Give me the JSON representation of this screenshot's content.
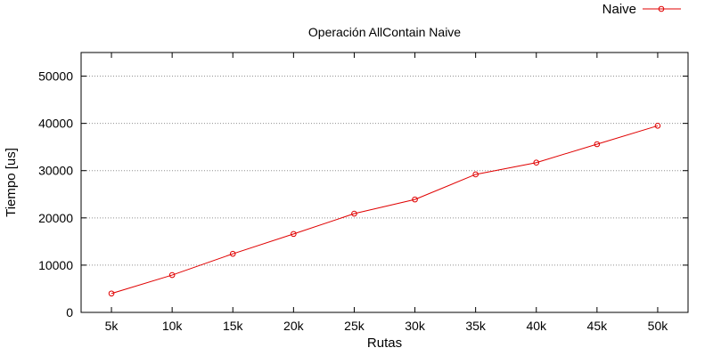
{
  "chart_data": {
    "type": "line",
    "title": "Operación AllContain Naive",
    "xlabel": "Rutas",
    "ylabel": "Tiempo [us]",
    "categories": [
      "5k",
      "10k",
      "15k",
      "20k",
      "25k",
      "30k",
      "35k",
      "40k",
      "45k",
      "50k"
    ],
    "series": [
      {
        "name": "Naive",
        "color": "#e00000",
        "marker": "circle",
        "values": [
          4000,
          7900,
          12400,
          16600,
          20900,
          23900,
          29200,
          31700,
          35600,
          39500
        ]
      }
    ],
    "ylim": [
      0,
      55000
    ],
    "yticks": [
      0,
      10000,
      20000,
      30000,
      40000,
      50000
    ],
    "ytick_labels": [
      "0",
      "10000",
      "20000",
      "30000",
      "40000",
      "50000"
    ],
    "grid": "horizontal dotted",
    "legend": "top-right"
  }
}
